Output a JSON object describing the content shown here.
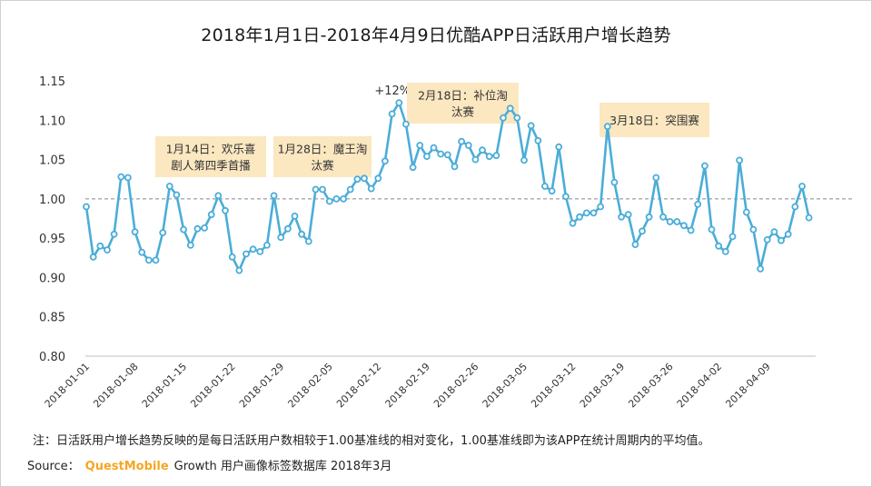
{
  "title": "2018年1月1日-2018年4月9日优酷APP日活跃用户增长趋势",
  "note": "注：日活跃用户增长趋势反映的是每日活跃用户数相较于1.00基准线的相对变化，1.00基准线即为该APP在统计周期内的平均值。",
  "source": {
    "prefix": "Source：",
    "brand": "QuestMobile",
    "suffix": "Growth 用户画像标签数据库 2018年3月"
  },
  "colors": {
    "line": "#4badd8",
    "marker_fill": "#ffffff",
    "annotation_bg": "#fbe7c0",
    "baseline": "#888888",
    "brand": "#f5a623"
  },
  "chart_data": {
    "type": "line",
    "title": "2018年1月1日-2018年4月9日优酷APP日活跃用户增长趋势",
    "x_tick_labels": [
      "2018-01-01",
      "2018-01-08",
      "2018-01-15",
      "2018-01-22",
      "2018-01-29",
      "2018-02-05",
      "2018-02-12",
      "2018-02-19",
      "2018-02-26",
      "2018-03-05",
      "2018-03-12",
      "2018-03-19",
      "2018-03-26",
      "2018-04-02",
      "2018-04-09"
    ],
    "y_tick_labels": [
      "1.15",
      "1.10",
      "1.05",
      "1.00",
      "0.95",
      "0.90",
      "0.85",
      "0.80"
    ],
    "ylim": [
      0.8,
      1.15
    ],
    "baseline": 1.0,
    "grid": false,
    "series": [
      {
        "values": [
          0.99,
          0.926,
          0.94,
          0.935,
          0.955,
          1.028,
          1.027,
          0.958,
          0.932,
          0.922,
          0.922,
          0.957,
          1.016,
          1.005,
          0.961,
          0.941,
          0.962,
          0.963,
          0.98,
          1.004,
          0.985,
          0.926,
          0.909,
          0.93,
          0.936,
          0.933,
          0.941,
          1.004,
          0.951,
          0.962,
          0.978,
          0.955,
          0.946,
          1.012,
          1.012,
          0.997,
          1.0,
          1.0,
          1.012,
          1.025,
          1.026,
          1.013,
          1.026,
          1.048,
          1.108,
          1.122,
          1.095,
          1.04,
          1.068,
          1.054,
          1.065,
          1.057,
          1.056,
          1.041,
          1.073,
          1.068,
          1.05,
          1.062,
          1.054,
          1.055,
          1.103,
          1.115,
          1.103,
          1.049,
          1.093,
          1.074,
          1.016,
          1.01,
          1.066,
          1.003,
          0.969,
          0.977,
          0.982,
          0.982,
          0.99,
          1.092,
          1.021,
          0.977,
          0.98,
          0.942,
          0.959,
          0.977,
          1.027,
          0.977,
          0.971,
          0.971,
          0.966,
          0.96,
          0.993,
          1.042,
          0.961,
          0.94,
          0.933,
          0.952,
          1.049,
          0.983,
          0.961,
          0.911,
          0.948,
          0.958,
          0.947,
          0.955,
          0.99,
          1.016,
          0.976
        ]
      }
    ],
    "annotations": [
      {
        "text": "+12%",
        "index": 45
      },
      {
        "text": "1月14日：欢乐喜剧人第四季首播",
        "lines": [
          "1月14日：欢乐喜",
          "剧人第四季首播"
        ],
        "index": 13
      },
      {
        "text": "1月28日：魔王淘汰赛",
        "lines": [
          "1月28日：魔王淘",
          "汰赛"
        ],
        "index": 27
      },
      {
        "text": "2月18日：补位淘汰赛",
        "lines": [
          "2月18日：补位淘",
          "汰赛"
        ],
        "index": 48
      },
      {
        "text": "3月18日：突围赛",
        "lines": [
          "3月18日：突围赛"
        ],
        "index": 76
      }
    ]
  }
}
